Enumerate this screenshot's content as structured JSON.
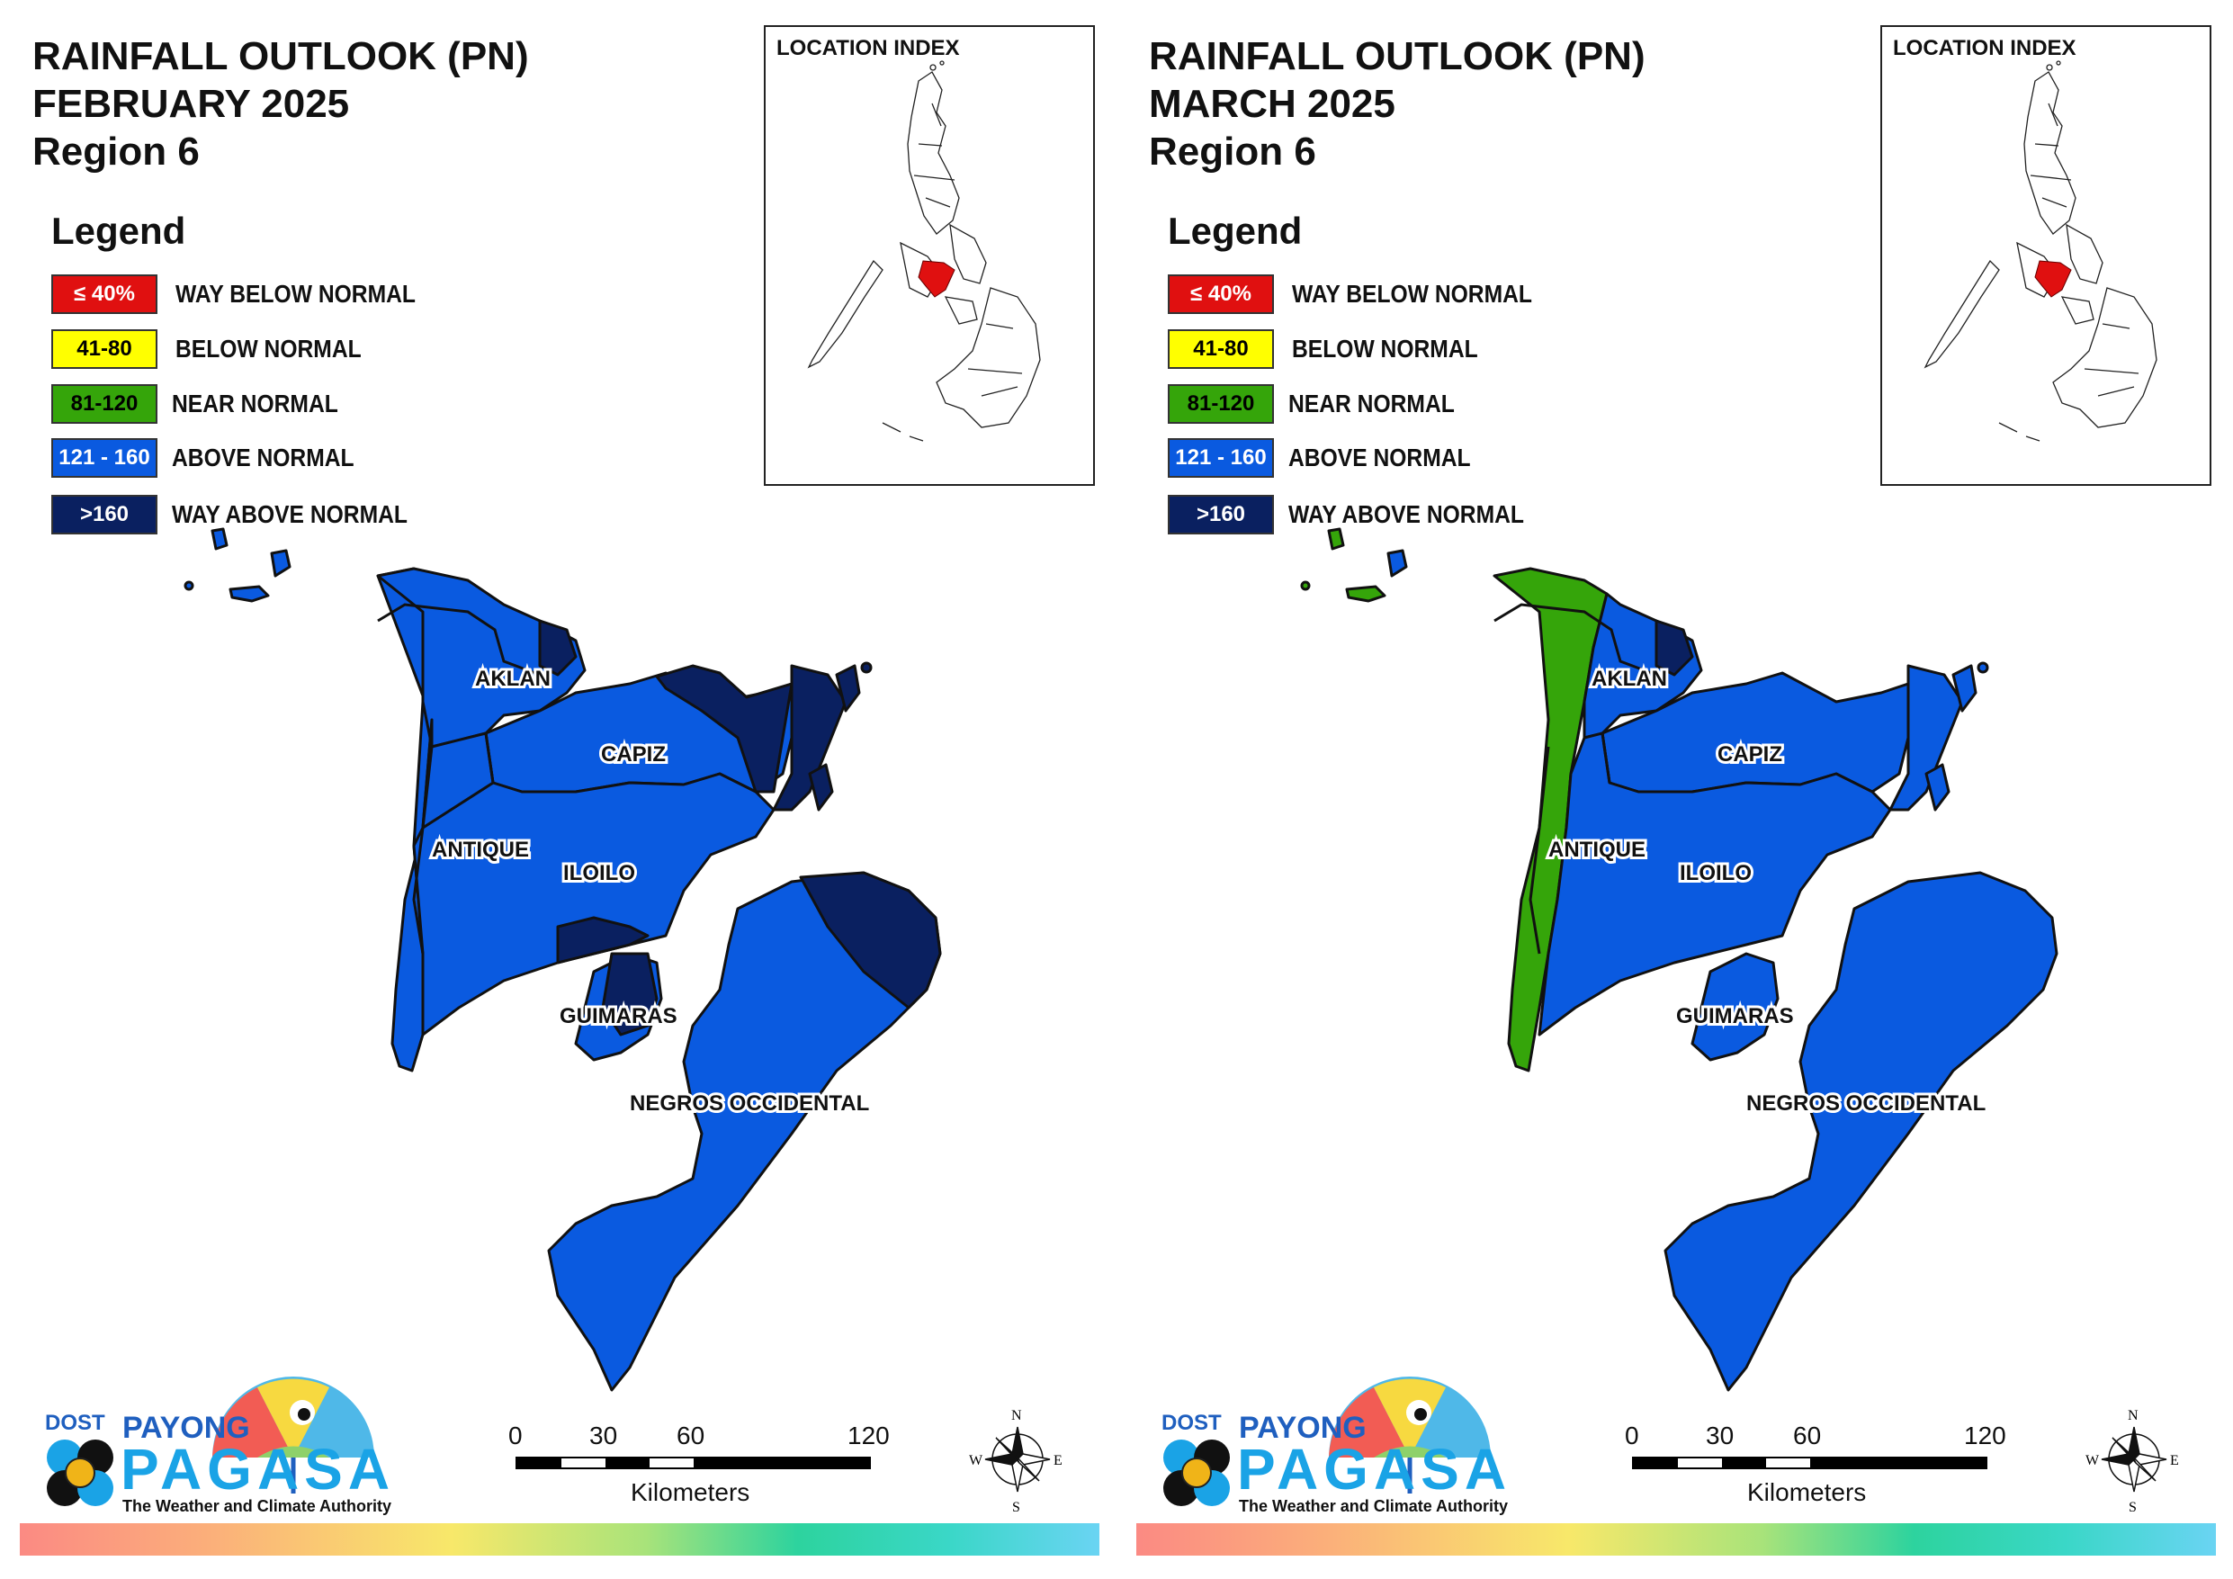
{
  "panels": [
    {
      "title_line1": "RAINFALL OUTLOOK (PN)",
      "title_line2": "FEBRUARY 2025",
      "title_line3": "Region 6",
      "legend_title": "Legend",
      "inset_title": "LOCATION INDEX",
      "provinces": {
        "aklan": "AKLAN",
        "capiz": "CAPIZ",
        "antique": "ANTIQUE",
        "iloilo": "ILOILO",
        "guimaras": "GUIMARAS",
        "negros": "NEGROS OCCIDENTAL"
      },
      "fills": {
        "antique_west": "#0a5ae0",
        "antique_east": "#0a5ae0",
        "aklan_west": "#0a5ae0",
        "aklan_east": "#0a5ae0",
        "capiz": "#0a5ae0",
        "iloilo": "#0a5ae0",
        "guimaras": "#0a5ae0",
        "negros": "#0a5ae0"
      },
      "way_above_patches": true
    },
    {
      "title_line1": "RAINFALL OUTLOOK (PN)",
      "title_line2": "MARCH 2025",
      "title_line3": "Region 6",
      "legend_title": "Legend",
      "inset_title": "LOCATION INDEX",
      "provinces": {
        "aklan": "AKLAN",
        "capiz": "CAPIZ",
        "antique": "ANTIQUE",
        "iloilo": "ILOILO",
        "guimaras": "GUIMARAS",
        "negros": "NEGROS OCCIDENTAL"
      },
      "fills": {
        "antique_west": "#35a50a",
        "antique_east": "#0a5ae0",
        "aklan_west": "#35a50a",
        "aklan_east": "#0a5ae0",
        "capiz": "#0a5ae0",
        "iloilo": "#0a5ae0",
        "guimaras": "#0a5ae0",
        "negros": "#0a5ae0"
      },
      "way_above_patches": false
    }
  ],
  "legend": [
    {
      "swatch": "≤ 40%",
      "label": "WAY BELOW NORMAL",
      "color": "#e01010",
      "text_color": "#ffffff"
    },
    {
      "swatch": "41-80",
      "label": "BELOW NORMAL",
      "color": "#ffff00",
      "text_color": "#000000"
    },
    {
      "swatch": "81-120",
      "label": "NEAR NORMAL",
      "color": "#35a50a",
      "text_color": "#000000"
    },
    {
      "swatch": "121 - 160",
      "label": "ABOVE NORMAL",
      "color": "#0a5ae0",
      "text_color": "#ffffff"
    },
    {
      "swatch": ">160",
      "label": "WAY ABOVE NORMAL",
      "color": "#0a2060",
      "text_color": "#ffffff"
    }
  ],
  "scale": {
    "ticks": [
      "0",
      "30",
      "60",
      "120"
    ],
    "unit": "Kilometers"
  },
  "logo": {
    "dost": "DOST",
    "payong": "PAYONG",
    "pagasa": "PAGASA",
    "tagline": "The Weather and Climate Authority"
  },
  "compass": {
    "n": "N",
    "e": "E",
    "s": "S",
    "w": "W"
  },
  "colors": {
    "way_above_normal": "#0a2060",
    "above_normal": "#0a5ae0",
    "near_normal": "#35a50a",
    "region_highlight": "#e01010"
  }
}
